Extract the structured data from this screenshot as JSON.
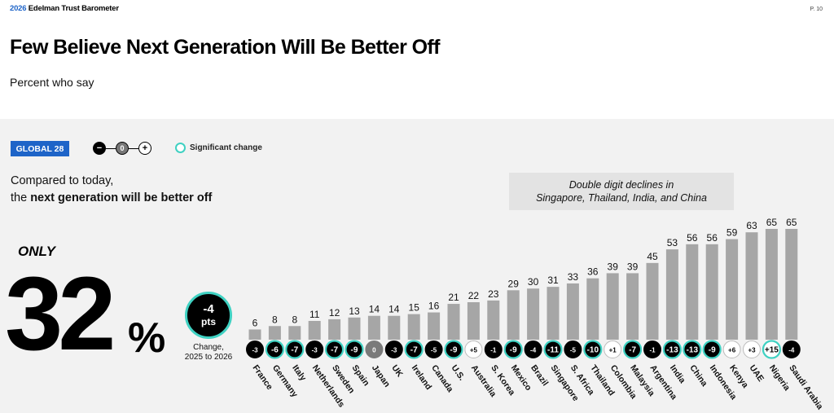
{
  "header": {
    "brand_year": "2026",
    "brand_name": "Edelman Trust Barometer",
    "page_number": "P. 10"
  },
  "title": "Few Believe Next Generation Will Be Better Off",
  "subtitle": "Percent who say",
  "badge": "GLOBAL 28",
  "legend": {
    "minus": "−",
    "zero": "0",
    "plus": "+",
    "significant_change": "Significant change"
  },
  "question": {
    "line1": "Compared to today,",
    "line2_prefix": "the ",
    "line2_bold": "next generation will be better off"
  },
  "headline": {
    "only": "ONLY",
    "value": "32",
    "unit": "%",
    "change_value": "-4",
    "change_unit": "pts",
    "change_label_1": "Change,",
    "change_label_2": "2025 to 2026"
  },
  "callout": {
    "line1": "Double digit declines in",
    "line2": "Singapore, Thailand, India, and China"
  },
  "colors": {
    "accent_blue": "#1e64c8",
    "bar": "#a6a6a6",
    "significant_ring": "#3fd1c2",
    "panel_bg": "#f2f2f2"
  },
  "chart_data": {
    "type": "bar",
    "title": "Few Believe Next Generation Will Be Better Off",
    "ylabel": "Percent who say",
    "ylim": [
      0,
      65
    ],
    "categories": [
      "France",
      "Germany",
      "Italy",
      "Netherlands",
      "Sweden",
      "Spain",
      "Japan",
      "UK",
      "Ireland",
      "Canada",
      "U.S.",
      "Australia",
      "S. Korea",
      "Mexico",
      "Brazil",
      "Singapore",
      "S. Africa",
      "Thailand",
      "Colombia",
      "Malaysia",
      "Argentina",
      "India",
      "China",
      "Indonesia",
      "Kenya",
      "UAE",
      "Nigeria",
      "Saudi Arabia"
    ],
    "values": [
      6,
      8,
      8,
      11,
      12,
      13,
      14,
      14,
      15,
      16,
      21,
      22,
      23,
      29,
      30,
      31,
      33,
      36,
      39,
      39,
      45,
      53,
      56,
      56,
      59,
      63,
      65,
      65
    ],
    "change_labels": [
      "-3",
      "-6",
      "-7",
      "-3",
      "-7",
      "-9",
      "0",
      "-3",
      "-7",
      "-5",
      "-9",
      "+5",
      "-1",
      "-9",
      "-4",
      "-11",
      "-5",
      "-10",
      "+1",
      "-7",
      "-1",
      "-13",
      "-13",
      "-9",
      "+6",
      "+3",
      "+15",
      "-4"
    ],
    "change_direction": [
      "neg",
      "neg",
      "neg",
      "neg",
      "neg",
      "neg",
      "zero",
      "neg",
      "neg",
      "neg",
      "neg",
      "pos",
      "neg",
      "neg",
      "neg",
      "neg",
      "neg",
      "neg",
      "pos",
      "neg",
      "neg",
      "neg",
      "neg",
      "neg",
      "pos",
      "pos",
      "pos",
      "neg"
    ],
    "significant": [
      false,
      true,
      true,
      false,
      true,
      true,
      false,
      false,
      true,
      false,
      true,
      false,
      false,
      true,
      false,
      true,
      false,
      true,
      false,
      true,
      false,
      true,
      true,
      true,
      false,
      false,
      true,
      false
    ]
  }
}
